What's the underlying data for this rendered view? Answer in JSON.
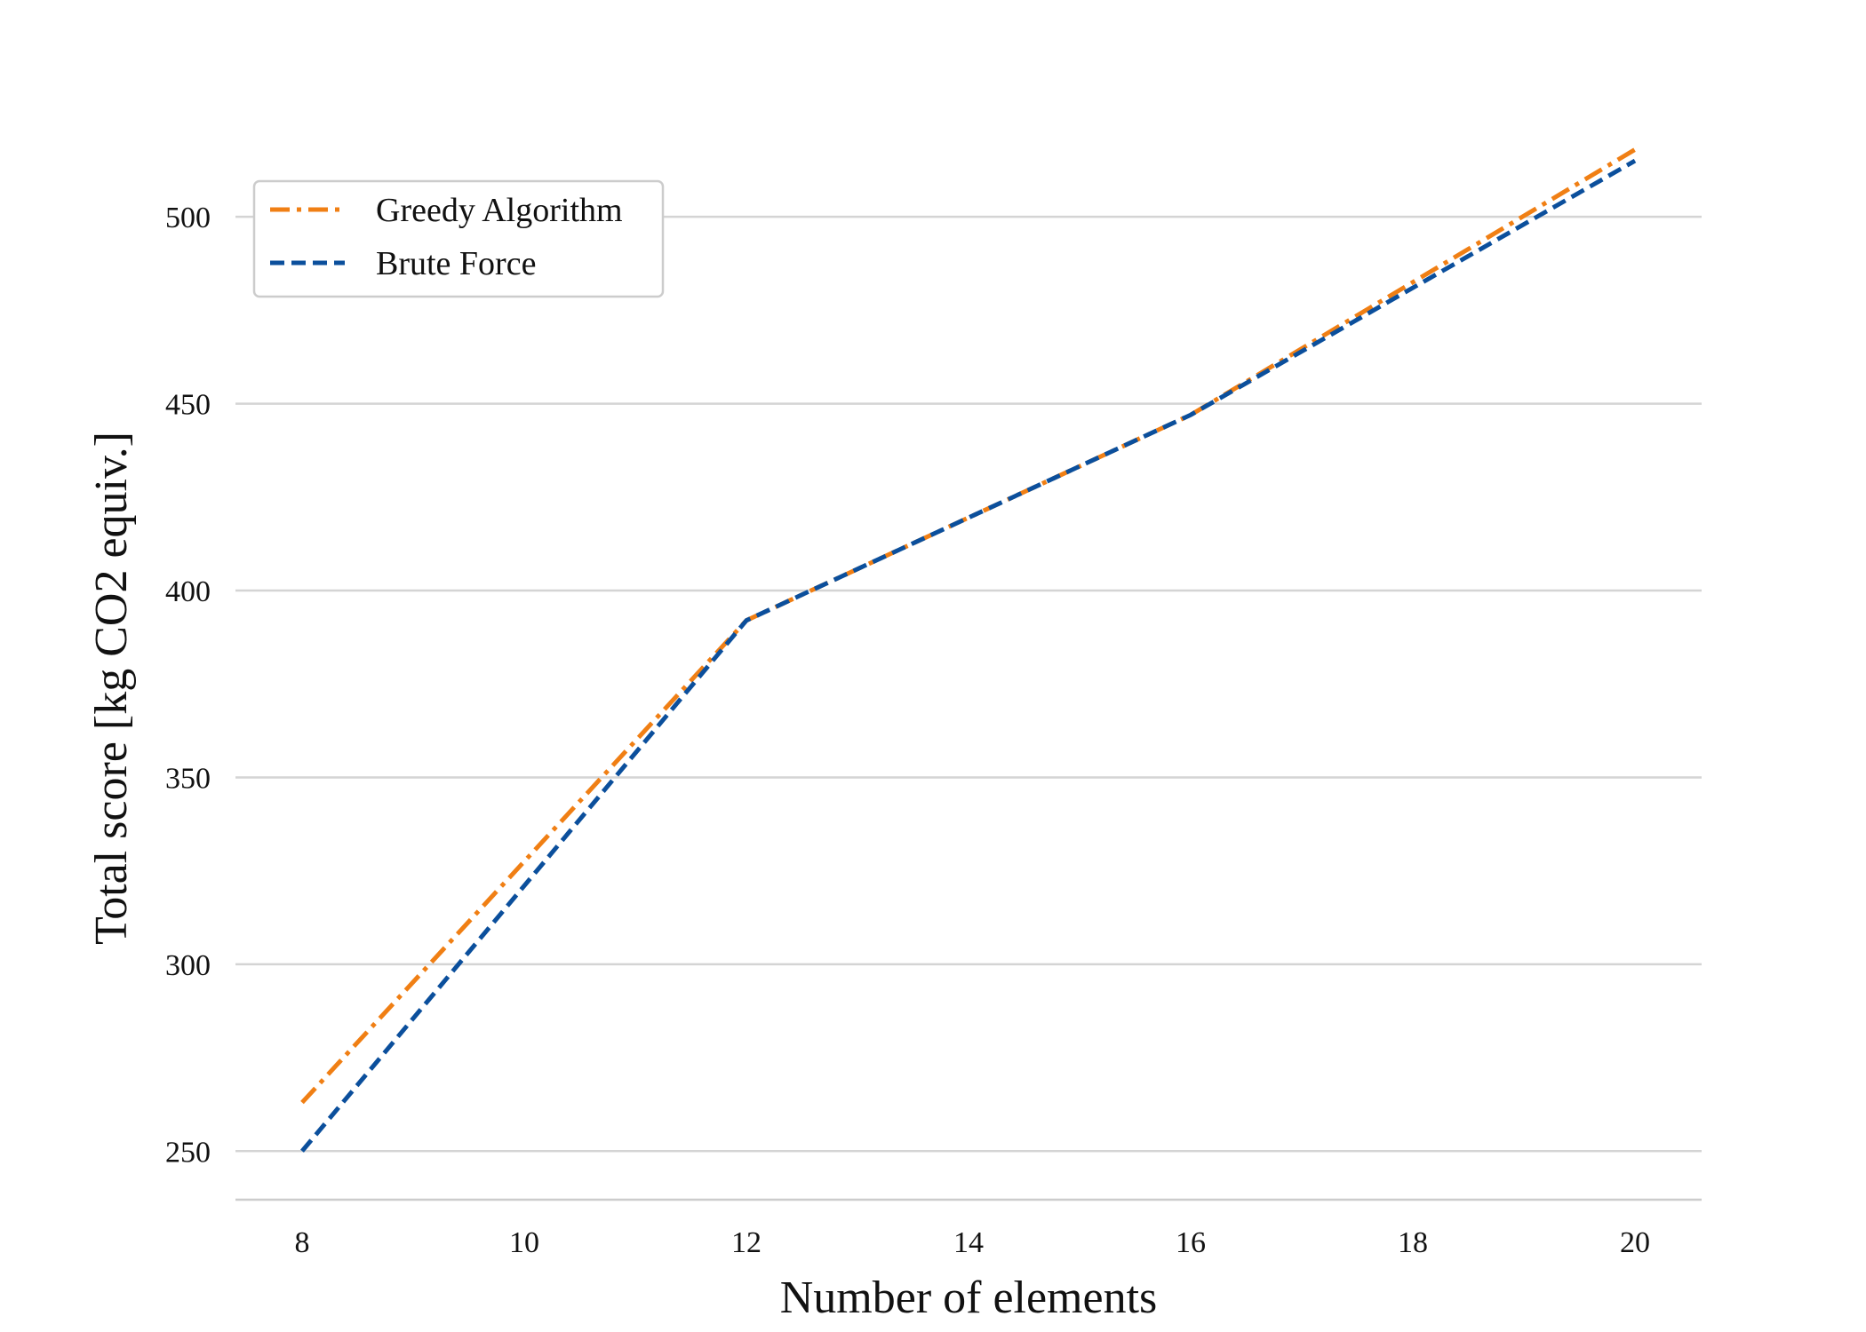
{
  "chart_data": {
    "type": "line",
    "title": "",
    "xlabel": "Number of elements",
    "ylabel": "Total score [kg CO2 equiv.]",
    "xlim": [
      7.4,
      20.6
    ],
    "ylim": [
      237,
      520
    ],
    "xticks": [
      8,
      10,
      12,
      14,
      16,
      18,
      20
    ],
    "yticks": [
      250,
      300,
      350,
      400,
      450,
      500
    ],
    "grid": "horizontal",
    "legend_position": "upper-left",
    "series": [
      {
        "name": "Greedy Algorithm",
        "color": "#f07f14",
        "dash": "dashdot",
        "x": [
          8,
          12,
          16,
          20
        ],
        "y": [
          263,
          392,
          447,
          518
        ]
      },
      {
        "name": "Brute Force",
        "color": "#0b4f9c",
        "dash": "dashed",
        "x": [
          8,
          12,
          16,
          20
        ],
        "y": [
          250,
          392,
          447,
          515
        ]
      }
    ]
  }
}
